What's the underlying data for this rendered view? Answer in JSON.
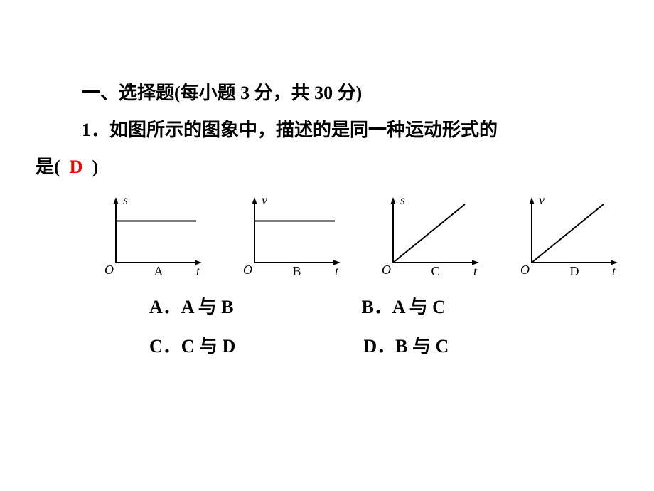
{
  "section": {
    "title": "一、选择题(每小题 3 分，共 30 分)"
  },
  "question": {
    "number": "1．",
    "text_part1": "如图所示的图象中，描述的是同一种运动形式的",
    "text_part2": "是(",
    "text_part3": ")",
    "answer": "D"
  },
  "graphs": [
    {
      "label": "A",
      "y_axis": "s",
      "x_axis": "t",
      "line": {
        "type": "horizontal",
        "y": 0.65
      },
      "stroke": "#000000",
      "stroke_width": 2,
      "arrow_size": 8
    },
    {
      "label": "B",
      "y_axis": "v",
      "x_axis": "t",
      "line": {
        "type": "horizontal",
        "y": 0.65
      },
      "stroke": "#000000",
      "stroke_width": 2,
      "arrow_size": 8
    },
    {
      "label": "C",
      "y_axis": "s",
      "x_axis": "t",
      "line": {
        "type": "diagonal"
      },
      "stroke": "#000000",
      "stroke_width": 2,
      "arrow_size": 8
    },
    {
      "label": "D",
      "y_axis": "v",
      "x_axis": "t",
      "line": {
        "type": "diagonal"
      },
      "stroke": "#000000",
      "stroke_width": 2,
      "arrow_size": 8
    }
  ],
  "options": {
    "A": "A．A 与 B",
    "B": "B．A 与 C",
    "C": "C．C 与 D",
    "D": "D．B 与 C"
  },
  "origin_label": "O"
}
